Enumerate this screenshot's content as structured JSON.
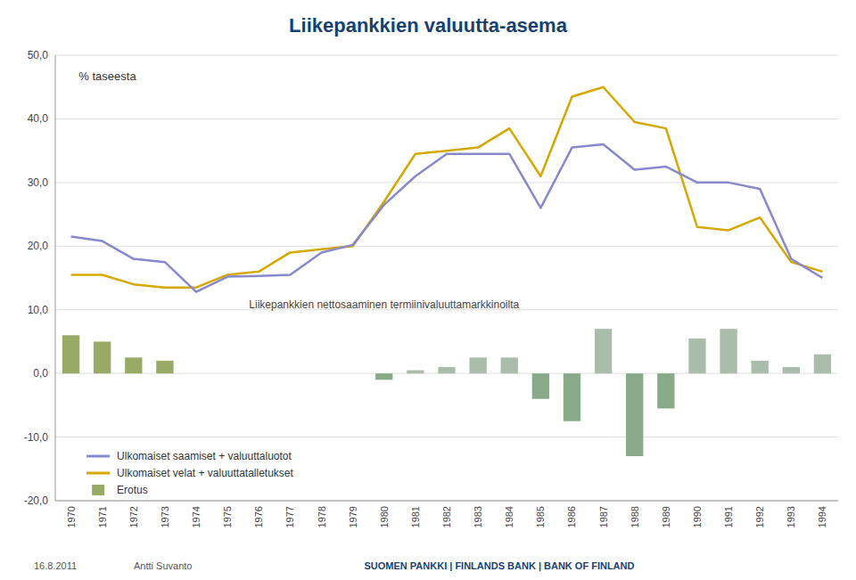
{
  "chart_data": {
    "type": "bar",
    "title": "Liikepankkien valuutta-asema",
    "ylabel": "% taseesta",
    "annotations": [
      "Liikepankkien nettosaaminen termiinivaluuttamarkkinoilta",
      "16.8.2011",
      "Antti Suvanto",
      "SUOMEN PANKKI | FINLANDS BANK | BANK OF FINLAND"
    ],
    "categories": [
      "1970",
      "1971",
      "1972",
      "1973",
      "1974",
      "1975",
      "1976",
      "1977",
      "1978",
      "1979",
      "1980",
      "1981",
      "1982",
      "1983",
      "1984",
      "1985",
      "1986",
      "1987",
      "1988",
      "1989",
      "1990",
      "1991",
      "1992",
      "1993",
      "1994"
    ],
    "series": [
      {
        "name": "Ulkomaiset saamiset + valuuttaluotot",
        "type": "line",
        "color": "#8888cc",
        "values": [
          21.5,
          20.8,
          18.0,
          17.5,
          12.8,
          15.2,
          15.3,
          15.5,
          19.0,
          20.2,
          26.5,
          31.0,
          34.5,
          34.5,
          34.5,
          26.0,
          35.5,
          36.0,
          32.0,
          32.5,
          30.0,
          30.0,
          29.0,
          18.0,
          15.0
        ]
      },
      {
        "name": "Ulkomaiset  velat + valuuttatalletukset",
        "type": "line",
        "color": "#d4a800",
        "values": [
          15.5,
          15.5,
          14.0,
          13.5,
          13.5,
          15.5,
          16.0,
          19.0,
          19.5,
          20.0,
          27.0,
          34.5,
          35.0,
          35.5,
          38.5,
          31.0,
          43.5,
          45.0,
          39.5,
          38.5,
          23.0,
          22.5,
          24.5,
          17.5,
          16.0
        ]
      },
      {
        "name": "Erotus",
        "type": "bar",
        "colors": [
          "#99aa66",
          "#99aa66",
          "#99aa66",
          "#99aa66",
          "#99aa66",
          "#99aa66",
          "#99aa66",
          "#99aa66",
          "#99aa66",
          "#99aa66",
          "#88aa88",
          "#aabcaa",
          "#aabcaa",
          "#aabcaa",
          "#aabcaa",
          "#88aa88",
          "#88aa88",
          "#aabcaa",
          "#88aa88",
          "#88aa88",
          "#aabcaa",
          "#aabcaa",
          "#aabcaa",
          "#aabcaa",
          "#aabcaa"
        ],
        "values": [
          6.0,
          5.0,
          2.5,
          2.0,
          0.0,
          0.0,
          0.0,
          0.0,
          0.0,
          0.0,
          -1.0,
          0.5,
          1.0,
          2.5,
          2.5,
          -4.0,
          -7.5,
          7.0,
          -13.0,
          -5.5,
          5.5,
          7.0,
          2.0,
          1.0,
          3.0
        ]
      }
    ],
    "ylim": [
      -20.0,
      50.0
    ],
    "yticks": [
      {
        "value": -20,
        "label": "-20,0"
      },
      {
        "value": -10,
        "label": "-10,0"
      },
      {
        "value": 0,
        "label": "0,0"
      },
      {
        "value": 10,
        "label": "10,0"
      },
      {
        "value": 20,
        "label": "20,0"
      },
      {
        "value": 30,
        "label": "30,0"
      },
      {
        "value": 40,
        "label": "40,0"
      },
      {
        "value": 50,
        "label": "50,0"
      }
    ],
    "grid": true,
    "legend": "lower left"
  }
}
